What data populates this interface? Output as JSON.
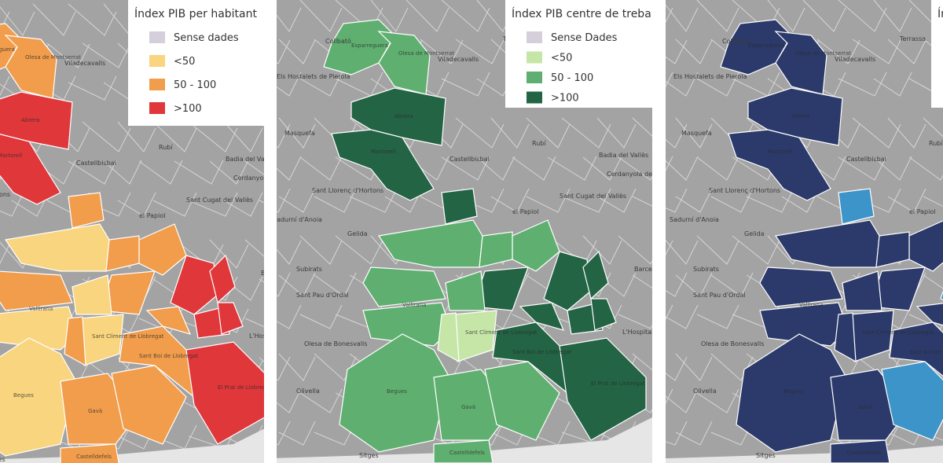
{
  "maps": [
    {
      "legend_title": "Índex PIB per habitant",
      "legend": [
        {
          "label": "Sense dades",
          "color": "#d4cfdb"
        },
        {
          "label": "<50",
          "color": "#f8d57e"
        },
        {
          "label": "50 - 100",
          "color": "#f19d4c"
        },
        {
          "label": ">100",
          "color": "#e0373b"
        }
      ]
    },
    {
      "legend_title": "Índex PIB centre de treball",
      "legend": [
        {
          "label": "Sense Dades",
          "color": "#d4cfdb"
        },
        {
          "label": "<50",
          "color": "#c6e6a8"
        },
        {
          "label": "50 - 100",
          "color": "#5fb070"
        },
        {
          "label": ">100",
          "color": "#236445"
        }
      ]
    },
    {
      "legend_title": "Ín",
      "colors": [
        "#2b3a6b",
        "#3d94c8"
      ]
    }
  ],
  "place_labels": [
    "Collbató",
    "Viladecavalls",
    "Terrassa",
    "Els Hostalets de Pierola",
    "Masquefa",
    "Rubí",
    "Castellbisbal",
    "Badia del Vallès",
    "Cerdanyola del Vallès",
    "Sant Llorenç d'Hortons",
    "Sant Cugat del Vallès",
    "el Papiol",
    "Sadurní d'Anoia",
    "Gelida",
    "Subirats",
    "Sant Pau d'Ordal",
    "Barcelona",
    "Olesa de Bonesvalls",
    "L'Hospitalet de Llobregat",
    "Olivella",
    "Sitges"
  ],
  "municipality_labels": [
    "Esparreguera",
    "Olesa de Montserrat",
    "Abrera",
    "Martorell",
    "Vallirana",
    "Begues",
    "Gavà",
    "Castelldefels",
    "Sant Boi de Llobregat",
    "Sant Climent de Llobregat",
    "El Prat de Llobregat"
  ]
}
